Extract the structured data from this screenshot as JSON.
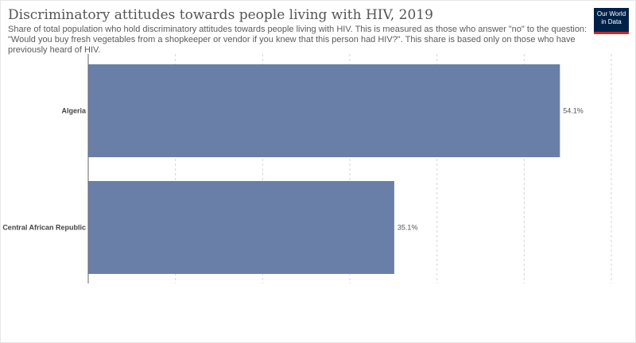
{
  "header": {
    "title": "Discriminatory attitudes towards people living with HIV, 2019",
    "subtitle": "Share of total population who hold discriminatory attitudes towards people living with HIV. This is measured as those who answer \"no\" to the question: \"Would you buy fresh vegetables from a shopkeeper or vendor if you knew that this person had HIV?\". This share is based only on those who have previously heard of HIV."
  },
  "logo": {
    "line1": "Our World",
    "line2": "in Data"
  },
  "colors": {
    "bar": "#6a7fa8",
    "grid": "#d5d5d5",
    "axis": "#666666",
    "logo_bg": "#002147",
    "logo_accent": "#ce261e"
  },
  "chart_data": {
    "type": "bar",
    "orientation": "horizontal",
    "categories": [
      "Algeria",
      "Central African Republic"
    ],
    "values": [
      54.1,
      35.1
    ],
    "value_labels": [
      "54.1%",
      "35.1%"
    ],
    "unit": "%",
    "xlim": [
      0,
      60
    ],
    "grid": "vertical dashed",
    "legend": "none"
  }
}
